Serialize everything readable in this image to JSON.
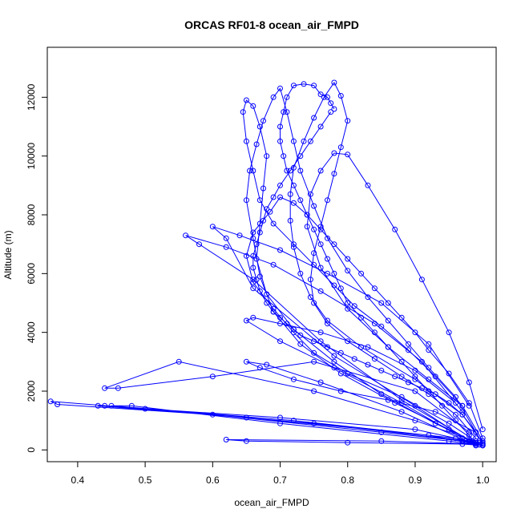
{
  "chart_data": {
    "type": "line",
    "title": "ORCAS RF01-8 ocean_air_FMPD",
    "xlabel": "ocean_air_FMPD",
    "ylabel": "Altitude (m)",
    "xlim": [
      0.355,
      1.02
    ],
    "ylim": [
      -400,
      13700
    ],
    "xticks": [
      "0.4",
      "0.5",
      "0.6",
      "0.7",
      "0.8",
      "0.9",
      "1.0"
    ],
    "yticks": [
      "0",
      "2000",
      "4000",
      "6000",
      "8000",
      "10000",
      "12000"
    ],
    "grid": false,
    "legend": "none",
    "series_color": "#0000ff",
    "series": [
      {
        "x": [
          0.99,
          0.98,
          0.96,
          0.94,
          0.92,
          0.9,
          0.88,
          0.86,
          0.84,
          0.82,
          0.8,
          0.79,
          0.78,
          0.77,
          0.76,
          0.75,
          0.74,
          0.73,
          0.72,
          0.71,
          0.705,
          0.7,
          0.7,
          0.705,
          0.71,
          0.72,
          0.735,
          0.75,
          0.76,
          0.77,
          0.775,
          0.78
        ],
        "y": [
          150,
          500,
          1000,
          1500,
          2000,
          2500,
          3000,
          3500,
          4000,
          4500,
          5000,
          5500,
          6000,
          6500,
          7000,
          7500,
          8000,
          8500,
          9000,
          9500,
          10000,
          10500,
          11000,
          11500,
          12000,
          12400,
          12450,
          12400,
          12100,
          12000,
          11800,
          11600
        ]
      },
      {
        "x": [
          0.775,
          0.76,
          0.745,
          0.73,
          0.715,
          0.7,
          0.69,
          0.68,
          0.675,
          0.67,
          0.665,
          0.66,
          0.66,
          0.665,
          0.67,
          0.68,
          0.69,
          0.7,
          0.71,
          0.72,
          0.73,
          0.75,
          0.77,
          0.79,
          0.81,
          0.83,
          0.85,
          0.87,
          0.89,
          0.91,
          0.93,
          0.95,
          0.97,
          0.99,
          1.0
        ],
        "y": [
          11500,
          11000,
          10500,
          10000,
          9500,
          9000,
          8600,
          8200,
          7800,
          7400,
          7000,
          6600,
          6200,
          5800,
          5400,
          5000,
          4700,
          4500,
          4300,
          4100,
          3900,
          3700,
          3500,
          3300,
          3100,
          2900,
          2700,
          2500,
          2300,
          2100,
          1900,
          1600,
          1200,
          600,
          200
        ]
      },
      {
        "x": [
          1.0,
          0.9,
          0.7,
          0.5,
          0.36,
          0.37,
          0.6,
          0.85,
          0.97,
          1.0,
          0.98,
          0.75,
          0.44,
          0.43,
          0.65,
          0.92,
          0.99,
          1.0,
          0.96,
          0.72,
          0.45,
          0.48,
          0.7,
          0.95,
          1.0,
          0.99,
          0.85,
          0.62,
          0.65,
          0.8,
          0.97,
          1.0,
          0.995
        ],
        "y": [
          200,
          700,
          1100,
          1400,
          1650,
          1550,
          1200,
          600,
          300,
          200,
          300,
          900,
          1500,
          1500,
          1100,
          500,
          200,
          150,
          400,
          1000,
          1500,
          1500,
          900,
          300,
          150,
          200,
          300,
          350,
          300,
          250,
          200,
          150,
          180
        ]
      },
      {
        "x": [
          0.99,
          0.95,
          0.88,
          0.8,
          0.75,
          0.72,
          0.69,
          0.66,
          0.65,
          0.66,
          0.685,
          0.7,
          0.72,
          0.74,
          0.76,
          0.78,
          0.8,
          0.82,
          0.84,
          0.86,
          0.88,
          0.9,
          0.92,
          0.95,
          0.98,
          1.0
        ],
        "y": [
          300,
          900,
          1800,
          2600,
          3300,
          4000,
          4800,
          5700,
          6600,
          7400,
          8100,
          8600,
          8400,
          8000,
          7500,
          7000,
          6500,
          6000,
          5500,
          5000,
          4500,
          4000,
          3400,
          2600,
          1600,
          400
        ]
      },
      {
        "x": [
          1.0,
          0.97,
          0.9,
          0.82,
          0.77,
          0.745,
          0.73,
          0.72,
          0.715,
          0.715,
          0.72,
          0.735,
          0.75,
          0.765,
          0.78,
          0.79,
          0.8,
          0.79,
          0.78,
          0.77,
          0.76,
          0.75,
          0.745,
          0.75,
          0.77,
          0.8,
          0.84,
          0.88,
          0.92,
          0.96,
          0.99
        ],
        "y": [
          250,
          1200,
          2400,
          3500,
          4400,
          5200,
          6000,
          6900,
          7800,
          8700,
          9600,
          10500,
          11300,
          12000,
          12500,
          12050,
          11200,
          10300,
          9400,
          8500,
          7600,
          6700,
          5800,
          5000,
          4300,
          3700,
          3100,
          2500,
          1900,
          1200,
          400
        ]
      },
      {
        "x": [
          0.995,
          0.95,
          0.87,
          0.79,
          0.73,
          0.69,
          0.67,
          0.66,
          0.65,
          0.655,
          0.665,
          0.675,
          0.69,
          0.7,
          0.71,
          0.72,
          0.73,
          0.75,
          0.77,
          0.8,
          0.83,
          0.86,
          0.89,
          0.92,
          0.96,
          0.99
        ],
        "y": [
          180,
          700,
          1600,
          2600,
          3600,
          4700,
          5900,
          7200,
          8500,
          9500,
          10400,
          11200,
          12000,
          12300,
          11500,
          10500,
          9500,
          8300,
          7200,
          6100,
          5200,
          4400,
          3600,
          2800,
          1800,
          600
        ]
      },
      {
        "x": [
          0.99,
          0.93,
          0.85,
          0.78,
          0.72,
          0.68,
          0.665,
          0.67,
          0.675,
          0.68,
          0.67,
          0.66,
          0.65,
          0.645,
          0.65,
          0.66,
          0.67,
          0.69,
          0.72,
          0.75,
          0.78,
          0.81,
          0.85,
          0.89,
          0.93,
          0.97,
          1.0
        ],
        "y": [
          250,
          900,
          1900,
          3000,
          4100,
          5300,
          6500,
          7700,
          8900,
          10000,
          11000,
          11700,
          11900,
          11500,
          10500,
          9500,
          8500,
          7700,
          7000,
          6300,
          5600,
          4900,
          4200,
          3400,
          2500,
          1500,
          300
        ]
      },
      {
        "x": [
          0.98,
          0.9,
          0.78,
          0.66,
          0.62,
          0.6,
          0.64,
          0.7,
          0.77,
          0.85,
          0.92,
          0.98
        ],
        "y": [
          300,
          1500,
          3200,
          5500,
          7200,
          7600,
          7300,
          6800,
          6000,
          5000,
          3600,
          1500
        ]
      },
      {
        "x": [
          0.99,
          0.88,
          0.76,
          0.66,
          0.58,
          0.56,
          0.62,
          0.69,
          0.76,
          0.84,
          0.91,
          0.97
        ],
        "y": [
          200,
          1700,
          3700,
          5800,
          7000,
          7300,
          6900,
          6300,
          5400,
          4300,
          3000,
          1300
        ]
      },
      {
        "x": [
          0.995,
          0.9,
          0.75,
          0.55,
          0.44,
          0.46,
          0.6,
          0.75,
          0.9,
          0.98
        ],
        "y": [
          250,
          1000,
          2000,
          3000,
          2100,
          2100,
          2500,
          3000,
          2000,
          600
        ]
      },
      {
        "x": [
          0.97,
          0.88,
          0.78,
          0.7,
          0.65,
          0.66,
          0.7,
          0.76,
          0.83,
          0.9,
          0.96
        ],
        "y": [
          400,
          1600,
          2800,
          3700,
          4400,
          4500,
          4300,
          4000,
          3500,
          2700,
          1600
        ]
      },
      {
        "x": [
          0.99,
          0.88,
          0.76,
          0.68,
          0.65,
          0.67,
          0.72,
          0.79,
          0.86,
          0.93,
          0.99
        ],
        "y": [
          150,
          1300,
          2300,
          2900,
          3000,
          2800,
          2400,
          2000,
          1700,
          1300,
          600
        ]
      },
      {
        "x": [
          0.97,
          0.92,
          0.86,
          0.8,
          0.76,
          0.74,
          0.745,
          0.76,
          0.78,
          0.8,
          0.83,
          0.87,
          0.91,
          0.95,
          0.98,
          1.0
        ],
        "y": [
          1500,
          2400,
          3500,
          4800,
          6200,
          7600,
          8700,
          9500,
          10100,
          10050,
          9000,
          7500,
          5800,
          4000,
          2300,
          700
        ]
      }
    ]
  }
}
